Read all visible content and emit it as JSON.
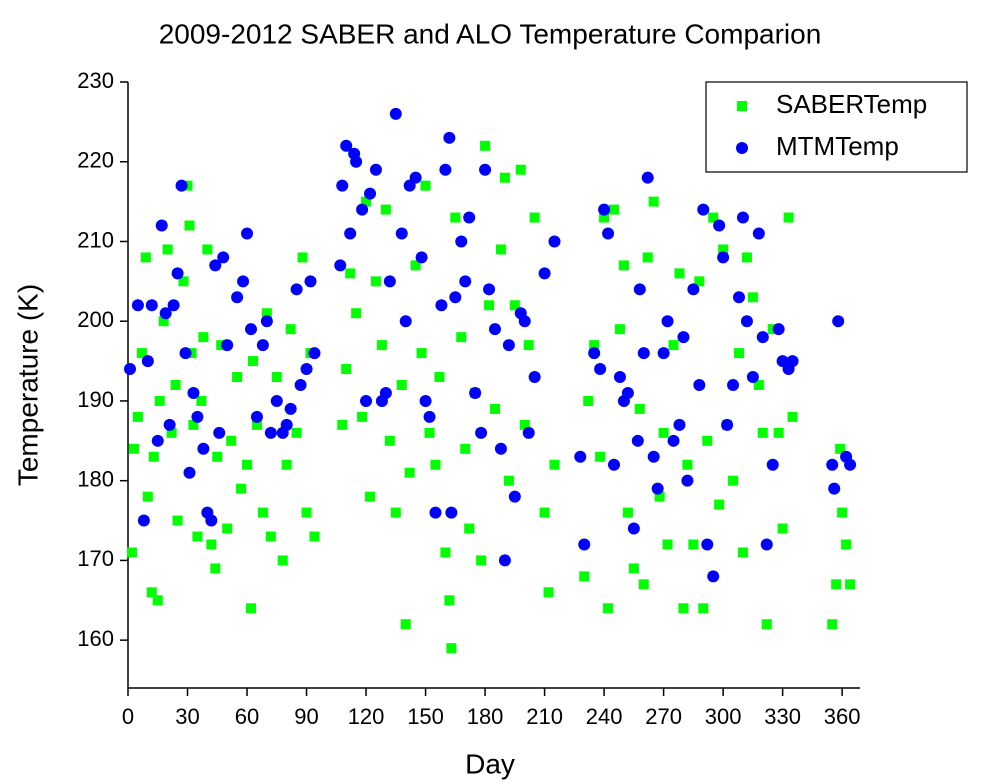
{
  "chart_data": {
    "type": "scatter",
    "title": "2009-2012 SABER and ALO Temperature Comparion",
    "x_label": "Day",
    "y_label": "Temperature (K)",
    "xlim": [
      0,
      369
    ],
    "ylim": [
      154,
      230
    ],
    "xticks": [
      0,
      30,
      60,
      90,
      120,
      150,
      180,
      210,
      240,
      270,
      300,
      330,
      360
    ],
    "yticks": [
      160,
      170,
      180,
      190,
      200,
      210,
      220,
      230
    ],
    "legend": "upper right",
    "series": [
      {
        "name": "SABERTemp",
        "color": "#00ff00",
        "marker": "square",
        "x": [
          2,
          3,
          5,
          7,
          9,
          10,
          12,
          13,
          15,
          16,
          18,
          20,
          22,
          24,
          25,
          28,
          30,
          31,
          32,
          33,
          35,
          37,
          38,
          40,
          42,
          44,
          45,
          47,
          50,
          52,
          55,
          57,
          60,
          62,
          63,
          65,
          68,
          70,
          72,
          75,
          78,
          80,
          82,
          85,
          88,
          90,
          92,
          94,
          108,
          110,
          112,
          115,
          118,
          120,
          122,
          125,
          128,
          130,
          132,
          135,
          138,
          140,
          142,
          145,
          148,
          150,
          152,
          155,
          157,
          160,
          162,
          163,
          165,
          168,
          170,
          172,
          175,
          178,
          180,
          182,
          185,
          188,
          190,
          192,
          195,
          198,
          200,
          202,
          205,
          210,
          212,
          215,
          230,
          232,
          235,
          238,
          240,
          242,
          245,
          248,
          250,
          252,
          255,
          258,
          260,
          262,
          265,
          268,
          270,
          272,
          275,
          278,
          280,
          282,
          285,
          288,
          290,
          292,
          295,
          298,
          300,
          302,
          305,
          308,
          310,
          312,
          315,
          318,
          320,
          322,
          325,
          328,
          330,
          333,
          335,
          355,
          357,
          359,
          360,
          362,
          364
        ],
        "values": [
          171,
          184,
          188,
          196,
          208,
          178,
          166,
          183,
          165,
          190,
          200,
          209,
          186,
          192,
          175,
          205,
          217,
          212,
          196,
          187,
          173,
          190,
          198,
          209,
          172,
          169,
          183,
          197,
          174,
          185,
          193,
          179,
          182,
          164,
          195,
          187,
          176,
          201,
          173,
          193,
          170,
          182,
          199,
          186,
          208,
          176,
          196,
          173,
          187,
          194,
          206,
          201,
          188,
          215,
          178,
          205,
          197,
          214,
          185,
          176,
          192,
          162,
          181,
          207,
          196,
          217,
          186,
          182,
          193,
          171,
          165,
          159,
          213,
          198,
          184,
          174,
          191,
          170,
          222,
          202,
          189,
          209,
          218,
          180,
          202,
          219,
          187,
          197,
          213,
          176,
          166,
          182,
          168,
          190,
          197,
          183,
          213,
          164,
          214,
          199,
          207,
          176,
          169,
          189,
          167,
          208,
          215,
          178,
          186,
          172,
          197,
          206,
          164,
          182,
          172,
          205,
          164,
          185,
          213,
          177,
          209,
          187,
          180,
          196,
          171,
          208,
          203,
          192,
          186,
          162,
          199,
          186,
          174,
          213,
          188,
          162,
          167,
          184,
          176,
          172,
          167
        ]
      },
      {
        "name": "MTMTemp",
        "color": "#0000ff",
        "marker": "circle",
        "x": [
          1,
          5,
          8,
          10,
          12,
          15,
          17,
          19,
          21,
          23,
          25,
          27,
          29,
          31,
          33,
          35,
          38,
          40,
          42,
          44,
          46,
          48,
          50,
          55,
          58,
          60,
          62,
          65,
          68,
          70,
          72,
          75,
          78,
          80,
          82,
          85,
          87,
          90,
          92,
          94,
          107,
          108,
          110,
          112,
          114,
          115,
          118,
          120,
          122,
          125,
          128,
          130,
          132,
          135,
          138,
          140,
          142,
          145,
          148,
          150,
          152,
          155,
          158,
          160,
          162,
          163,
          165,
          168,
          170,
          172,
          175,
          178,
          180,
          182,
          185,
          188,
          190,
          192,
          195,
          198,
          200,
          202,
          205,
          210,
          215,
          228,
          230,
          235,
          238,
          240,
          242,
          245,
          248,
          250,
          252,
          255,
          257,
          258,
          260,
          262,
          265,
          267,
          270,
          272,
          275,
          278,
          280,
          282,
          285,
          288,
          290,
          292,
          295,
          298,
          300,
          302,
          305,
          308,
          310,
          312,
          315,
          318,
          320,
          322,
          325,
          328,
          330,
          333,
          335,
          355,
          356,
          358,
          362,
          364
        ],
        "values": [
          194,
          202,
          175,
          195,
          202,
          185,
          212,
          201,
          187,
          202,
          206,
          217,
          196,
          181,
          191,
          188,
          184,
          176,
          175,
          207,
          186,
          208,
          197,
          203,
          205,
          211,
          199,
          188,
          197,
          200,
          186,
          190,
          186,
          187,
          189,
          204,
          192,
          194,
          205,
          196,
          207,
          217,
          222,
          211,
          221,
          220,
          214,
          190,
          216,
          219,
          190,
          191,
          205,
          226,
          211,
          200,
          217,
          218,
          208,
          190,
          188,
          176,
          202,
          219,
          223,
          176,
          203,
          210,
          205,
          213,
          191,
          186,
          219,
          204,
          199,
          184,
          170,
          197,
          178,
          201,
          200,
          186,
          193,
          206,
          210,
          183,
          172,
          196,
          194,
          214,
          211,
          182,
          193,
          190,
          191,
          174,
          185,
          204,
          196,
          218,
          183,
          179,
          196,
          200,
          185,
          187,
          198,
          180,
          204,
          192,
          214,
          172,
          168,
          212,
          208,
          187,
          192,
          203,
          213,
          200,
          193,
          211,
          198,
          172,
          182,
          199,
          195,
          194,
          195,
          182,
          179,
          200,
          183,
          182
        ]
      }
    ]
  }
}
